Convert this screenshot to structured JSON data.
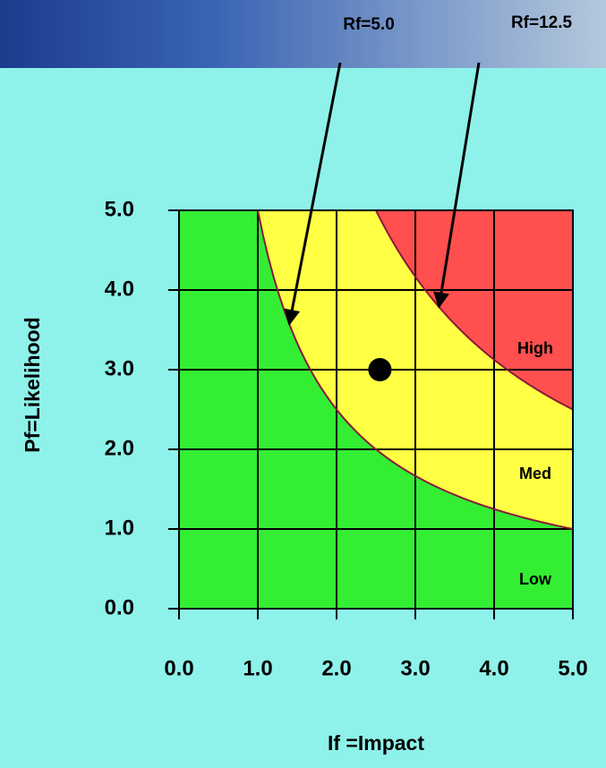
{
  "chart_data": {
    "type": "risk-matrix",
    "x_label": "If =Impact",
    "y_label": "Pf=Likelihood",
    "xlim": [
      0,
      5
    ],
    "ylim": [
      0,
      5
    ],
    "xticks": [
      {
        "value": 0,
        "label": "0.0"
      },
      {
        "value": 1,
        "label": "1.0"
      },
      {
        "value": 2,
        "label": "2.0"
      },
      {
        "value": 3,
        "label": "3.0"
      },
      {
        "value": 4,
        "label": "4.0"
      },
      {
        "value": 5,
        "label": "5.0"
      }
    ],
    "yticks": [
      {
        "value": 0,
        "label": "0.0"
      },
      {
        "value": 1,
        "label": "1.0"
      },
      {
        "value": 2,
        "label": "2.0"
      },
      {
        "value": 3,
        "label": "3.0"
      },
      {
        "value": 4,
        "label": "4.0"
      },
      {
        "value": 5,
        "label": "5.0"
      }
    ],
    "grid": true,
    "thresholds": [
      {
        "label": "Rf=5.0",
        "value": 5
      },
      {
        "label": "Rf=12.5",
        "value": 12.5
      }
    ],
    "zones": [
      {
        "label": "Low",
        "color": "#33ee33"
      },
      {
        "label": "Med",
        "color": "#ffff44"
      },
      {
        "label": "High",
        "color": "#ff4f4f"
      }
    ],
    "points": [
      {
        "x": 2.55,
        "y": 3.0
      }
    ]
  }
}
